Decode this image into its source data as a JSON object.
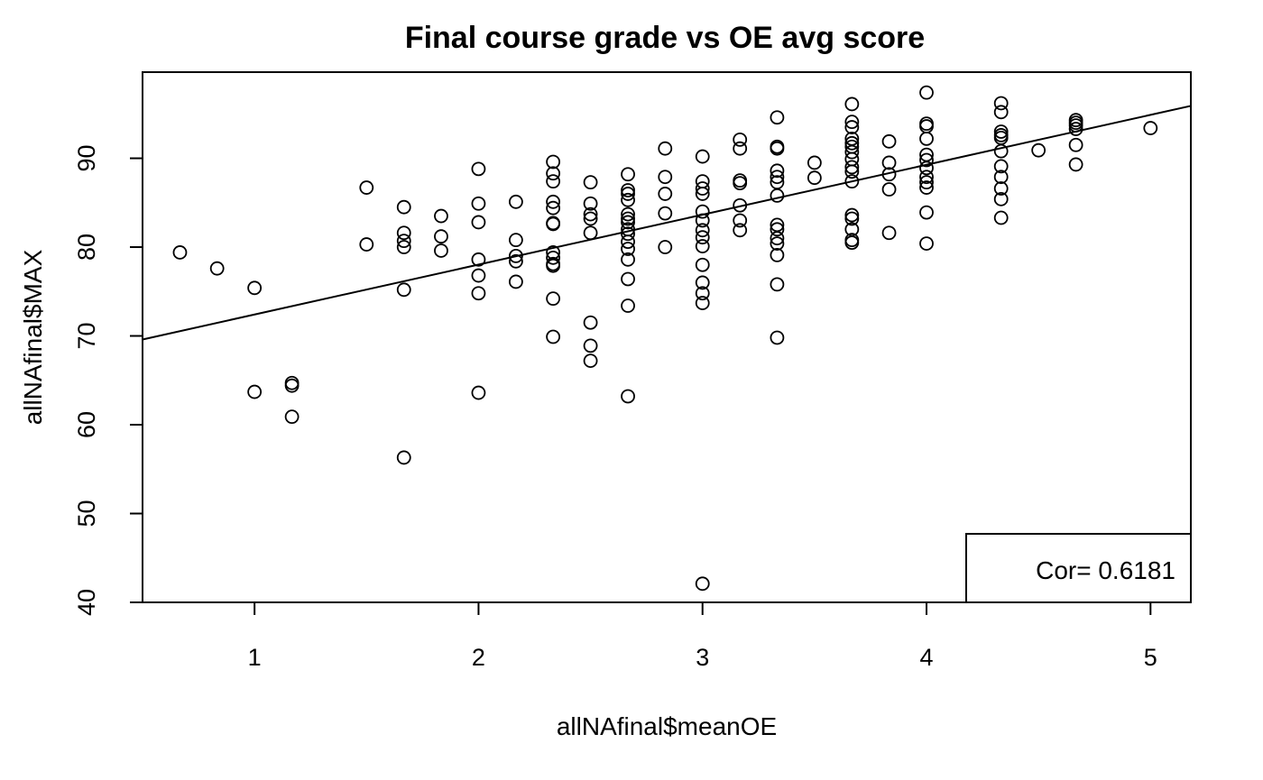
{
  "chart_data": {
    "type": "scatter",
    "title": "Final course grade vs OE avg score",
    "xlabel": "allNAfinal$meanOE",
    "ylabel": "allNAfinal$MAX",
    "xlim": [
      0.5,
      5.18
    ],
    "ylim": [
      40,
      99.7
    ],
    "xticks": [
      "1",
      "2",
      "3",
      "4",
      "5"
    ],
    "yticks": [
      "40",
      "50",
      "60",
      "70",
      "80",
      "90"
    ],
    "grid": false,
    "annotation": "Cor= 0.6181",
    "annotation_position": "bottom-right",
    "regression_line": {
      "x": [
        0.5,
        5.18
      ],
      "y": [
        69.6,
        95.9
      ]
    },
    "points": [
      {
        "x": 0.667,
        "y": 79.4
      },
      {
        "x": 0.833,
        "y": 77.6
      },
      {
        "x": 1.0,
        "y": 75.4
      },
      {
        "x": 1.0,
        "y": 63.7
      },
      {
        "x": 1.167,
        "y": 64.7
      },
      {
        "x": 1.167,
        "y": 64.4
      },
      {
        "x": 1.167,
        "y": 60.9
      },
      {
        "x": 1.5,
        "y": 86.7
      },
      {
        "x": 1.5,
        "y": 80.3
      },
      {
        "x": 1.667,
        "y": 84.5
      },
      {
        "x": 1.667,
        "y": 81.6
      },
      {
        "x": 1.667,
        "y": 80.7
      },
      {
        "x": 1.667,
        "y": 80.0
      },
      {
        "x": 1.667,
        "y": 75.2
      },
      {
        "x": 1.667,
        "y": 56.3
      },
      {
        "x": 1.833,
        "y": 83.5
      },
      {
        "x": 1.833,
        "y": 81.2
      },
      {
        "x": 1.833,
        "y": 79.6
      },
      {
        "x": 2.0,
        "y": 88.8
      },
      {
        "x": 2.0,
        "y": 84.9
      },
      {
        "x": 2.0,
        "y": 82.8
      },
      {
        "x": 2.0,
        "y": 78.6
      },
      {
        "x": 2.0,
        "y": 76.8
      },
      {
        "x": 2.0,
        "y": 74.8
      },
      {
        "x": 2.0,
        "y": 63.6
      },
      {
        "x": 2.167,
        "y": 85.1
      },
      {
        "x": 2.167,
        "y": 80.8
      },
      {
        "x": 2.167,
        "y": 79.0
      },
      {
        "x": 2.167,
        "y": 78.4
      },
      {
        "x": 2.167,
        "y": 76.1
      },
      {
        "x": 2.333,
        "y": 89.6
      },
      {
        "x": 2.333,
        "y": 88.3
      },
      {
        "x": 2.333,
        "y": 87.4
      },
      {
        "x": 2.333,
        "y": 85.1
      },
      {
        "x": 2.333,
        "y": 84.4
      },
      {
        "x": 2.333,
        "y": 82.7
      },
      {
        "x": 2.333,
        "y": 82.6
      },
      {
        "x": 2.333,
        "y": 79.4
      },
      {
        "x": 2.333,
        "y": 78.8
      },
      {
        "x": 2.333,
        "y": 78.1
      },
      {
        "x": 2.333,
        "y": 77.9
      },
      {
        "x": 2.333,
        "y": 74.2
      },
      {
        "x": 2.333,
        "y": 69.9
      },
      {
        "x": 2.5,
        "y": 87.3
      },
      {
        "x": 2.5,
        "y": 84.9
      },
      {
        "x": 2.5,
        "y": 83.7
      },
      {
        "x": 2.5,
        "y": 83.2
      },
      {
        "x": 2.5,
        "y": 81.6
      },
      {
        "x": 2.5,
        "y": 71.5
      },
      {
        "x": 2.5,
        "y": 68.9
      },
      {
        "x": 2.5,
        "y": 67.2
      },
      {
        "x": 2.667,
        "y": 88.2
      },
      {
        "x": 2.667,
        "y": 86.4
      },
      {
        "x": 2.667,
        "y": 86.0
      },
      {
        "x": 2.667,
        "y": 85.3
      },
      {
        "x": 2.667,
        "y": 83.7
      },
      {
        "x": 2.667,
        "y": 83.2
      },
      {
        "x": 2.667,
        "y": 82.8
      },
      {
        "x": 2.667,
        "y": 82.0
      },
      {
        "x": 2.667,
        "y": 81.5
      },
      {
        "x": 2.667,
        "y": 80.6
      },
      {
        "x": 2.667,
        "y": 79.8
      },
      {
        "x": 2.667,
        "y": 78.6
      },
      {
        "x": 2.667,
        "y": 76.4
      },
      {
        "x": 2.667,
        "y": 73.4
      },
      {
        "x": 2.667,
        "y": 63.2
      },
      {
        "x": 2.833,
        "y": 91.1
      },
      {
        "x": 2.833,
        "y": 87.9
      },
      {
        "x": 2.833,
        "y": 86.0
      },
      {
        "x": 2.833,
        "y": 83.8
      },
      {
        "x": 2.833,
        "y": 80.0
      },
      {
        "x": 3.0,
        "y": 90.2
      },
      {
        "x": 3.0,
        "y": 87.4
      },
      {
        "x": 3.0,
        "y": 86.6
      },
      {
        "x": 3.0,
        "y": 86.0
      },
      {
        "x": 3.0,
        "y": 84.0
      },
      {
        "x": 3.0,
        "y": 83.0
      },
      {
        "x": 3.0,
        "y": 81.9
      },
      {
        "x": 3.0,
        "y": 81.1
      },
      {
        "x": 3.0,
        "y": 80.1
      },
      {
        "x": 3.0,
        "y": 78.0
      },
      {
        "x": 3.0,
        "y": 76.0
      },
      {
        "x": 3.0,
        "y": 74.8
      },
      {
        "x": 3.0,
        "y": 73.7
      },
      {
        "x": 3.0,
        "y": 42.1
      },
      {
        "x": 3.167,
        "y": 92.1
      },
      {
        "x": 3.167,
        "y": 91.1
      },
      {
        "x": 3.167,
        "y": 87.5
      },
      {
        "x": 3.167,
        "y": 87.2
      },
      {
        "x": 3.167,
        "y": 84.7
      },
      {
        "x": 3.167,
        "y": 83.0
      },
      {
        "x": 3.167,
        "y": 81.9
      },
      {
        "x": 3.333,
        "y": 94.6
      },
      {
        "x": 3.333,
        "y": 91.3
      },
      {
        "x": 3.333,
        "y": 91.1
      },
      {
        "x": 3.333,
        "y": 88.6
      },
      {
        "x": 3.333,
        "y": 87.9
      },
      {
        "x": 3.333,
        "y": 87.3
      },
      {
        "x": 3.333,
        "y": 85.8
      },
      {
        "x": 3.333,
        "y": 82.5
      },
      {
        "x": 3.333,
        "y": 82.0
      },
      {
        "x": 3.333,
        "y": 81.0
      },
      {
        "x": 3.333,
        "y": 80.4
      },
      {
        "x": 3.333,
        "y": 79.1
      },
      {
        "x": 3.333,
        "y": 75.8
      },
      {
        "x": 3.333,
        "y": 69.8
      },
      {
        "x": 3.5,
        "y": 89.5
      },
      {
        "x": 3.5,
        "y": 87.8
      },
      {
        "x": 3.667,
        "y": 96.1
      },
      {
        "x": 3.667,
        "y": 94.1
      },
      {
        "x": 3.667,
        "y": 93.5
      },
      {
        "x": 3.667,
        "y": 92.2
      },
      {
        "x": 3.667,
        "y": 91.7
      },
      {
        "x": 3.667,
        "y": 91.3
      },
      {
        "x": 3.667,
        "y": 90.7
      },
      {
        "x": 3.667,
        "y": 89.9
      },
      {
        "x": 3.667,
        "y": 89.0
      },
      {
        "x": 3.667,
        "y": 88.5
      },
      {
        "x": 3.667,
        "y": 87.4
      },
      {
        "x": 3.667,
        "y": 83.6
      },
      {
        "x": 3.667,
        "y": 83.2
      },
      {
        "x": 3.667,
        "y": 82.0
      },
      {
        "x": 3.667,
        "y": 80.8
      },
      {
        "x": 3.667,
        "y": 80.5
      },
      {
        "x": 3.833,
        "y": 91.9
      },
      {
        "x": 3.833,
        "y": 89.5
      },
      {
        "x": 3.833,
        "y": 88.2
      },
      {
        "x": 3.833,
        "y": 86.5
      },
      {
        "x": 3.833,
        "y": 81.6
      },
      {
        "x": 4.0,
        "y": 97.4
      },
      {
        "x": 4.0,
        "y": 93.9
      },
      {
        "x": 4.0,
        "y": 93.6
      },
      {
        "x": 4.0,
        "y": 92.2
      },
      {
        "x": 4.0,
        "y": 90.4
      },
      {
        "x": 4.0,
        "y": 89.8
      },
      {
        "x": 4.0,
        "y": 88.9
      },
      {
        "x": 4.0,
        "y": 87.9
      },
      {
        "x": 4.0,
        "y": 87.3
      },
      {
        "x": 4.0,
        "y": 86.7
      },
      {
        "x": 4.0,
        "y": 83.9
      },
      {
        "x": 4.0,
        "y": 80.4
      },
      {
        "x": 4.333,
        "y": 96.2
      },
      {
        "x": 4.333,
        "y": 95.2
      },
      {
        "x": 4.333,
        "y": 93.0
      },
      {
        "x": 4.333,
        "y": 92.6
      },
      {
        "x": 4.333,
        "y": 92.3
      },
      {
        "x": 4.333,
        "y": 90.8
      },
      {
        "x": 4.333,
        "y": 89.1
      },
      {
        "x": 4.333,
        "y": 87.9
      },
      {
        "x": 4.333,
        "y": 86.6
      },
      {
        "x": 4.333,
        "y": 85.4
      },
      {
        "x": 4.333,
        "y": 83.3
      },
      {
        "x": 4.5,
        "y": 90.9
      },
      {
        "x": 4.667,
        "y": 94.3
      },
      {
        "x": 4.667,
        "y": 94.0
      },
      {
        "x": 4.667,
        "y": 93.7
      },
      {
        "x": 4.667,
        "y": 93.3
      },
      {
        "x": 4.667,
        "y": 91.5
      },
      {
        "x": 4.667,
        "y": 89.3
      },
      {
        "x": 5.0,
        "y": 93.4
      }
    ]
  }
}
